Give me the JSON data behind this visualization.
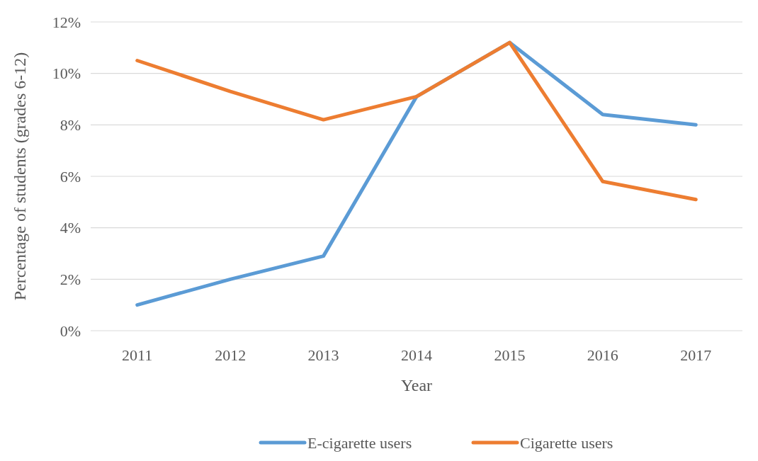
{
  "chart_data": {
    "type": "line",
    "xlabel": "Year",
    "ylabel": "Percentage of students (grades 6-12)",
    "categories": [
      "2011",
      "2012",
      "2013",
      "2014",
      "2015",
      "2016",
      "2017"
    ],
    "series": [
      {
        "name": "E-cigarette users",
        "color": "#5b9bd5",
        "values": [
          1.0,
          2.0,
          2.9,
          9.1,
          11.2,
          8.4,
          8.0
        ]
      },
      {
        "name": "Cigarette users",
        "color": "#ed7d31",
        "values": [
          10.5,
          9.3,
          8.2,
          9.1,
          11.2,
          5.8,
          5.1
        ]
      }
    ],
    "ylim": [
      0,
      12
    ],
    "yticks": [
      {
        "value": 0,
        "label": "0%"
      },
      {
        "value": 2,
        "label": "2%"
      },
      {
        "value": 4,
        "label": "4%"
      },
      {
        "value": 6,
        "label": "6%"
      },
      {
        "value": 8,
        "label": "8%"
      },
      {
        "value": 10,
        "label": "10%"
      },
      {
        "value": 12,
        "label": "12%"
      }
    ],
    "grid": "y",
    "legend": "bottom",
    "marker": "none",
    "line_style": "solid"
  }
}
